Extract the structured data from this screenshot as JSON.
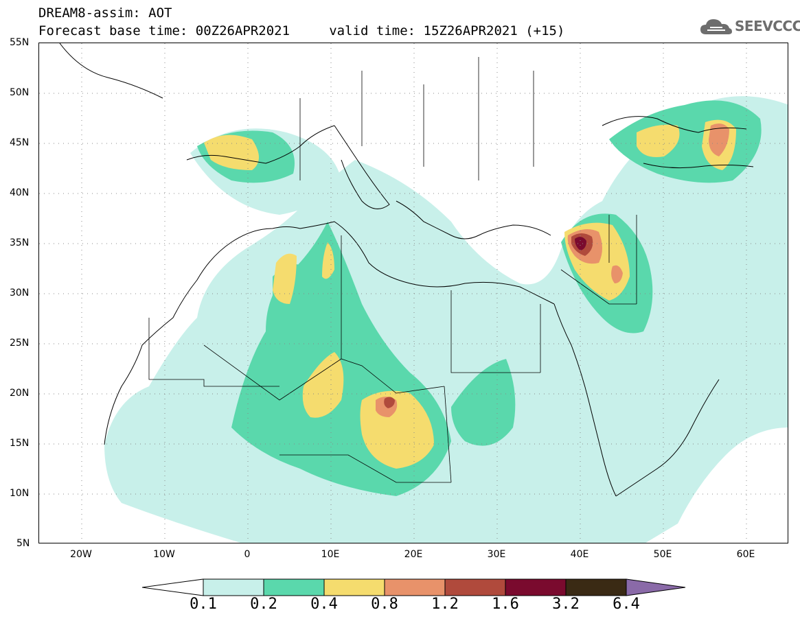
{
  "header": {
    "title_line1": "DREAM8-assim: AOT",
    "title_line2": "Forecast base time: 00Z26APR2021     valid time: 15Z26APR2021 (+15)"
  },
  "logo": {
    "text": "SEEVCCC",
    "icon": "cloud-icon"
  },
  "map": {
    "lat_labels": [
      "55N",
      "50N",
      "45N",
      "40N",
      "35N",
      "30N",
      "25N",
      "20N",
      "15N",
      "10N",
      "5N"
    ],
    "lon_labels": [
      "20W",
      "10W",
      "0",
      "10E",
      "20E",
      "30E",
      "40E",
      "50E",
      "60E"
    ],
    "lon_range": [
      -25,
      65
    ],
    "lat_range": [
      5,
      55
    ],
    "grid": "dotted"
  },
  "colorbar": {
    "levels": [
      "0.1",
      "0.2",
      "0.4",
      "0.8",
      "1.2",
      "1.6",
      "3.2",
      "6.4"
    ],
    "colors": [
      "#c8f0ea",
      "#5ad8ac",
      "#f5dc6e",
      "#e8926a",
      "#b04a3c",
      "#7a0a2e",
      "#3a2a14"
    ],
    "extend_low_color": "#ffffff",
    "extend_high_color": "#8a6aa8"
  }
}
